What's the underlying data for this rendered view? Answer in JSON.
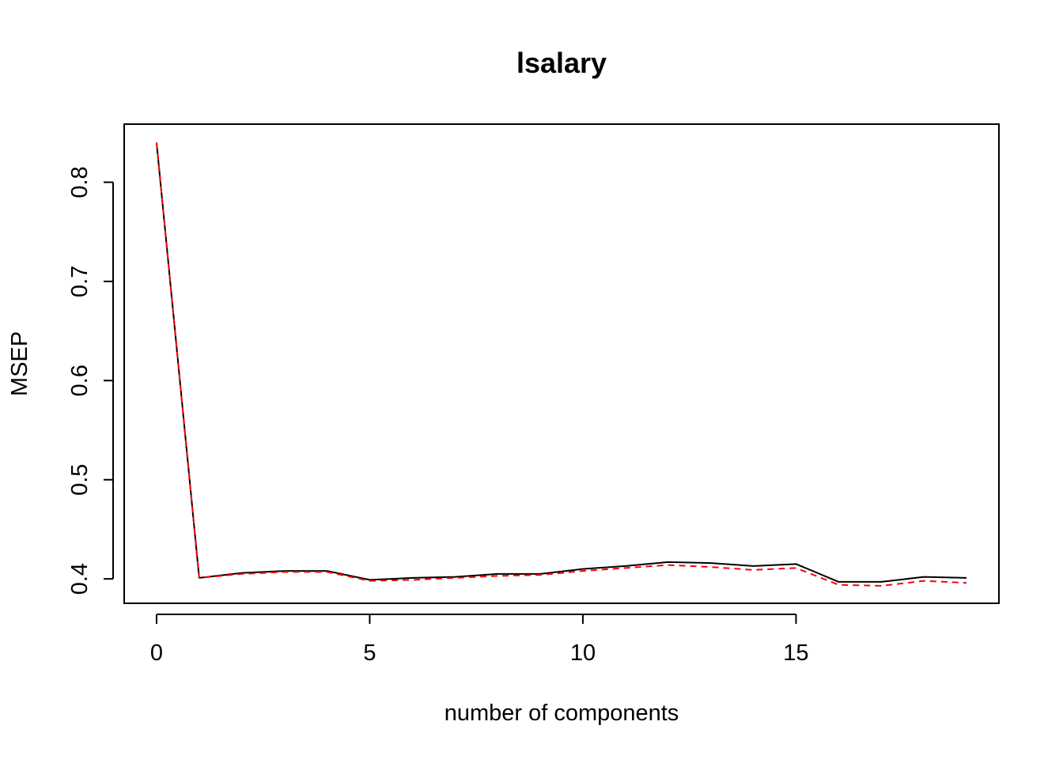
{
  "chart_data": {
    "type": "line",
    "title": "lsalary",
    "xlabel": "number of components",
    "ylabel": "MSEP",
    "xlim": [
      -0.76,
      19.76
    ],
    "ylim": [
      0.3754,
      0.8586
    ],
    "xticks": [
      0,
      5,
      10,
      15
    ],
    "xtick_labels": [
      "0",
      "5",
      "10",
      "15"
    ],
    "yticks": [
      0.4,
      0.5,
      0.6,
      0.7,
      0.8
    ],
    "ytick_labels": [
      "0.4",
      "0.5",
      "0.6",
      "0.7",
      "0.8"
    ],
    "grid": false,
    "legend": "none",
    "x": [
      0,
      1,
      2,
      3,
      4,
      5,
      6,
      7,
      8,
      9,
      10,
      11,
      12,
      13,
      14,
      15,
      16,
      17,
      18,
      19
    ],
    "series": [
      {
        "values": [
          0.84,
          0.401,
          0.406,
          0.408,
          0.408,
          0.399,
          0.401,
          0.402,
          0.405,
          0.405,
          0.41,
          0.413,
          0.417,
          0.416,
          0.413,
          0.415,
          0.397,
          0.397,
          0.402,
          0.401
        ],
        "color": "#000000",
        "line_style": "solid"
      },
      {
        "values": [
          0.84,
          0.401,
          0.405,
          0.407,
          0.407,
          0.398,
          0.399,
          0.401,
          0.403,
          0.404,
          0.408,
          0.411,
          0.414,
          0.412,
          0.409,
          0.411,
          0.394,
          0.393,
          0.398,
          0.396
        ],
        "color": "#ff0000",
        "line_style": "dashed"
      }
    ]
  }
}
